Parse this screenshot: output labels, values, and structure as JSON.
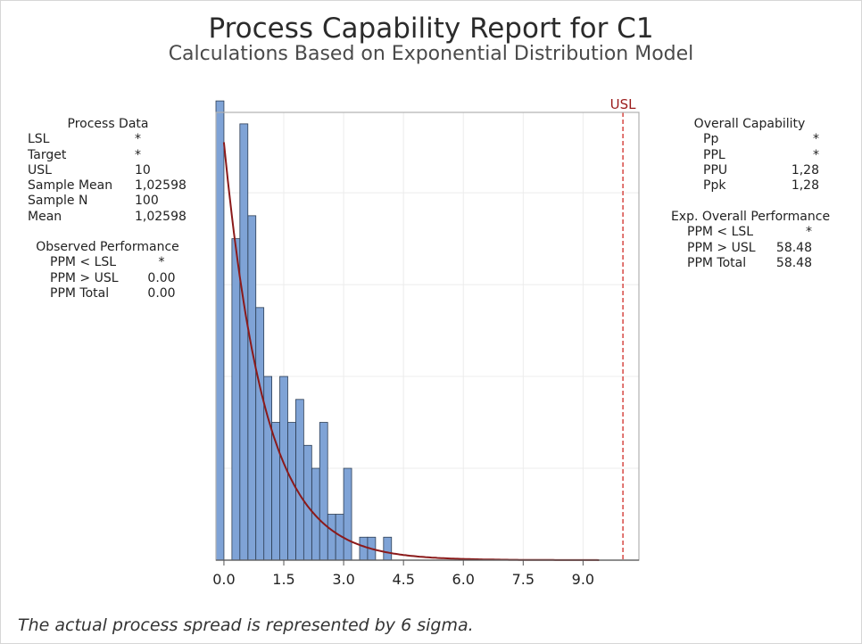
{
  "title": "Process Capability Report for C1",
  "subtitle": "Calculations Based on Exponential Distribution Model",
  "process_data": {
    "header": "Process Data",
    "rows": [
      {
        "label": "LSL",
        "value": "*"
      },
      {
        "label": "Target",
        "value": "*"
      },
      {
        "label": "USL",
        "value": "10"
      },
      {
        "label": "Sample Mean",
        "value": "1,02598"
      },
      {
        "label": "Sample N",
        "value": "100"
      },
      {
        "label": "Mean",
        "value": "1,02598"
      }
    ]
  },
  "observed_performance": {
    "header": "Observed Performance",
    "rows": [
      {
        "label": "PPM < LSL",
        "value": "*"
      },
      {
        "label": "PPM > USL",
        "value": "0.00"
      },
      {
        "label": "PPM Total",
        "value": "0.00"
      }
    ]
  },
  "overall_capability": {
    "header": "Overall Capability",
    "rows": [
      {
        "label": "Pp",
        "value": "*"
      },
      {
        "label": "PPL",
        "value": "*"
      },
      {
        "label": "PPU",
        "value": "1,28"
      },
      {
        "label": "Ppk",
        "value": "1,28"
      }
    ]
  },
  "exp_overall_performance": {
    "header": "Exp. Overall Performance",
    "rows": [
      {
        "label": "PPM < LSL",
        "value": "*"
      },
      {
        "label": "PPM > USL",
        "value": "58.48"
      },
      {
        "label": "PPM Total",
        "value": "58.48"
      }
    ]
  },
  "footnote": "The actual process spread is represented by 6 sigma.",
  "colors": {
    "bar_fill": "#7fa3d6",
    "bar_stroke": "#2d3e55",
    "curve": "#8b1a1a",
    "usl_line": "#d9534f",
    "usl_label": "#9b1b1b",
    "grid": "#ececec",
    "plot_border": "#b0b0b0"
  },
  "chart_data": {
    "type": "bar",
    "title": "Process Capability Report for C1",
    "subtitle": "Calculations Based on Exponential Distribution Model",
    "xlabel": "",
    "ylabel": "",
    "bin_width": 0.4,
    "bin_starts": [
      -0.2,
      0.2,
      0.6,
      1.0,
      1.4,
      1.8,
      2.2,
      2.6,
      3.0,
      3.4,
      3.8
    ],
    "series": [
      {
        "values": [
          20,
          14,
          15,
          8,
          8,
          7,
          4,
          2,
          4,
          1,
          0
        ]
      },
      {
        "values": [
          0,
          19,
          11,
          6,
          6,
          5,
          6,
          2,
          0,
          1,
          1
        ]
      }
    ],
    "xticks": [
      0.0,
      1.5,
      3.0,
      4.5,
      6.0,
      7.5,
      9.0
    ],
    "xtick_labels": [
      "0.0",
      "1.5",
      "3.0",
      "4.5",
      "6.0",
      "7.5",
      "9.0"
    ],
    "xlim": [
      -0.2,
      10.4
    ],
    "ylim": [
      0,
      19.5
    ],
    "density_curve": {
      "distribution": "exponential",
      "mean": 1.02598,
      "x_start": 0.0,
      "x_end": 9.4
    },
    "spec_limits": [
      {
        "name": "USL",
        "value": 10
      }
    ],
    "grid": true,
    "legend": "none"
  }
}
